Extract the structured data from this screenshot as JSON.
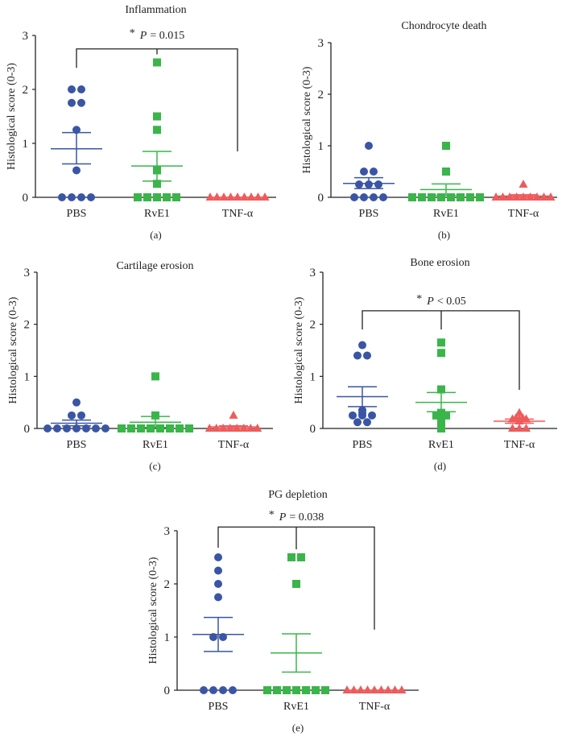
{
  "colors": {
    "PBS": "#3a55a4",
    "RvE1": "#3ab54a",
    "TNF": "#ef5b5b",
    "axis": "#222222"
  },
  "chart_data": [
    {
      "type": "scatter",
      "panel": "(a)",
      "title": "Inflammation",
      "ylabel": "Histological score (0-3)",
      "ylim": [
        0,
        3
      ],
      "yticks": [
        "0",
        "1",
        "2",
        "3"
      ],
      "categories": [
        "PBS",
        "RvE1",
        "TNF-α"
      ],
      "significance": {
        "star": "*",
        "p": "P",
        "rel": "= 0.015"
      },
      "series": [
        {
          "name": "PBS",
          "values": [
            2,
            2,
            1.75,
            1.75,
            1.25,
            0.5,
            0,
            0,
            0,
            0
          ],
          "mean": 0.9,
          "sem_low": 0.62,
          "sem_high": 1.2
        },
        {
          "name": "RvE1",
          "values": [
            2.5,
            1.5,
            1.25,
            0.5,
            0.25,
            0,
            0,
            0,
            0,
            0
          ],
          "mean": 0.58,
          "sem_low": 0.3,
          "sem_high": 0.85
        },
        {
          "name": "TNF-α",
          "values": [
            0,
            0,
            0,
            0,
            0,
            0,
            0,
            0,
            0
          ],
          "mean": 0,
          "sem_low": 0,
          "sem_high": 0
        }
      ]
    },
    {
      "type": "scatter",
      "panel": "(b)",
      "title": "Chondrocyte death",
      "ylabel": "Histological score (0-3)",
      "ylim": [
        0,
        3
      ],
      "yticks": [
        "0",
        "1",
        "2",
        "3"
      ],
      "categories": [
        "PBS",
        "RvE1",
        "TNF-α"
      ],
      "series": [
        {
          "name": "PBS",
          "values": [
            1,
            0.5,
            0.5,
            0.25,
            0.25,
            0.25,
            0,
            0,
            0,
            0
          ],
          "mean": 0.27,
          "sem_low": 0.17,
          "sem_high": 0.38
        },
        {
          "name": "RvE1",
          "values": [
            1,
            0.5,
            0,
            0,
            0,
            0,
            0,
            0,
            0,
            0
          ],
          "mean": 0.15,
          "sem_low": 0.04,
          "sem_high": 0.26
        },
        {
          "name": "TNF-α",
          "values": [
            0.25,
            0,
            0,
            0,
            0,
            0,
            0,
            0,
            0,
            0
          ],
          "mean": 0.025,
          "sem_low": 0,
          "sem_high": 0.05
        }
      ]
    },
    {
      "type": "scatter",
      "panel": "(c)",
      "title": "Cartilage erosion",
      "ylabel": "Histological score (0-3)",
      "ylim": [
        0,
        3
      ],
      "yticks": [
        "0",
        "1",
        "2",
        "3"
      ],
      "categories": [
        "PBS",
        "RvE1",
        "TNF-α"
      ],
      "series": [
        {
          "name": "PBS",
          "values": [
            0.5,
            0.25,
            0.25,
            0,
            0,
            0,
            0,
            0,
            0,
            0
          ],
          "mean": 0.1,
          "sem_low": 0.05,
          "sem_high": 0.16
        },
        {
          "name": "RvE1",
          "values": [
            1,
            0.25,
            0,
            0,
            0,
            0,
            0,
            0,
            0,
            0
          ],
          "mean": 0.12,
          "sem_low": 0.02,
          "sem_high": 0.23
        },
        {
          "name": "TNF-α",
          "values": [
            0.25,
            0,
            0,
            0,
            0,
            0,
            0,
            0,
            0
          ],
          "mean": 0.03,
          "sem_low": 0,
          "sem_high": 0.05
        }
      ]
    },
    {
      "type": "scatter",
      "panel": "(d)",
      "title": "Bone erosion",
      "ylabel": "Histological score (0-3)",
      "ylim": [
        0,
        3
      ],
      "yticks": [
        "0",
        "1",
        "2",
        "3"
      ],
      "categories": [
        "PBS",
        "RvE1",
        "TNF-α"
      ],
      "significance": {
        "star": "*",
        "p": "P",
        "rel": "< 0.05"
      },
      "series": [
        {
          "name": "PBS",
          "values": [
            1.6,
            1.4,
            1.4,
            0.35,
            0.3,
            0.25,
            0.25,
            0.25,
            0.12,
            0.12
          ],
          "mean": 0.61,
          "sem_low": 0.42,
          "sem_high": 0.8
        },
        {
          "name": "RvE1",
          "values": [
            1.65,
            1.45,
            0.75,
            0.3,
            0.25,
            0.22,
            0.18,
            0.25,
            0.12,
            0
          ],
          "mean": 0.5,
          "sem_low": 0.32,
          "sem_high": 0.69
        },
        {
          "name": "TNF-α",
          "values": [
            0.2,
            0.18,
            0.18,
            0.18,
            0.2,
            0.3,
            0.14,
            0,
            0,
            0
          ],
          "mean": 0.14,
          "sem_low": 0.1,
          "sem_high": 0.18
        }
      ]
    },
    {
      "type": "scatter",
      "panel": "(e)",
      "title": "PG depletion",
      "ylabel": "Histological score (0-3)",
      "ylim": [
        0,
        3
      ],
      "yticks": [
        "0",
        "1",
        "2",
        "3"
      ],
      "categories": [
        "PBS",
        "RvE1",
        "TNF-α"
      ],
      "significance": {
        "star": "*",
        "p": "P",
        "rel": "= 0.038"
      },
      "series": [
        {
          "name": "PBS",
          "values": [
            2.5,
            2.25,
            2,
            1.75,
            1,
            1,
            0,
            0,
            0,
            0
          ],
          "mean": 1.05,
          "sem_low": 0.73,
          "sem_high": 1.37
        },
        {
          "name": "RvE1",
          "values": [
            2.5,
            2.5,
            2,
            0,
            0,
            0,
            0,
            0,
            0,
            0
          ],
          "mean": 0.7,
          "sem_low": 0.34,
          "sem_high": 1.06
        },
        {
          "name": "TNF-α",
          "values": [
            0,
            0,
            0,
            0,
            0,
            0,
            0,
            0,
            0
          ],
          "mean": 0,
          "sem_low": 0,
          "sem_high": 0
        }
      ]
    }
  ]
}
